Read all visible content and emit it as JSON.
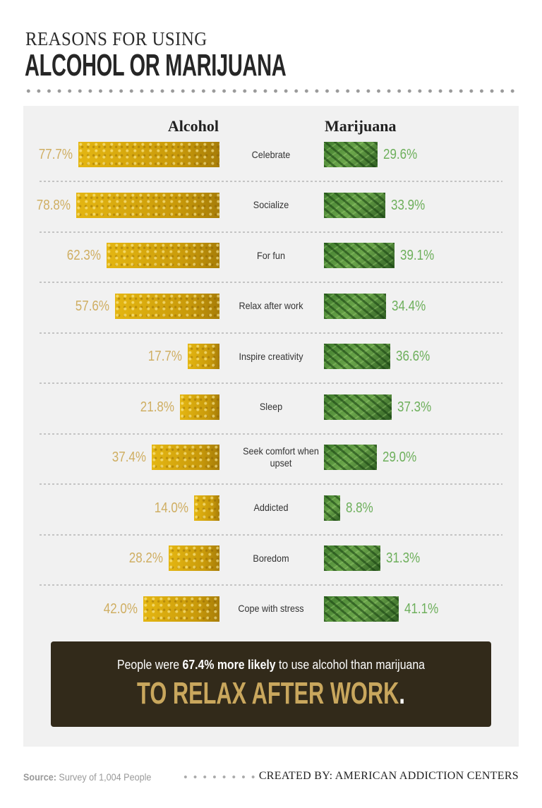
{
  "header": {
    "kicker": "REASONS FOR USING",
    "title": "ALCOHOL OR MARIJUANA"
  },
  "chart_data": {
    "type": "bar",
    "categories": [
      "Celebrate",
      "Socialize",
      "For fun",
      "Relax after work",
      "Inspire creativity",
      "Sleep",
      "Seek comfort when upset",
      "Addicted",
      "Boredom",
      "Cope with stress"
    ],
    "series": [
      {
        "name": "Alcohol",
        "values": [
          77.7,
          78.8,
          62.3,
          57.6,
          17.7,
          21.8,
          37.4,
          14.0,
          28.2,
          42.0
        ],
        "color": "#d4a80e"
      },
      {
        "name": "Marijuana",
        "values": [
          29.6,
          33.9,
          39.1,
          34.4,
          36.6,
          37.3,
          29.0,
          8.8,
          31.3,
          41.1
        ],
        "color": "#4e8a37"
      }
    ],
    "labels_alcohol": [
      "77.7%",
      "78.8%",
      "62.3%",
      "57.6%",
      "17.7%",
      "21.8%",
      "37.4%",
      "14.0%",
      "28.2%",
      "42.0%"
    ],
    "labels_marijuana": [
      "29.6%",
      "33.9%",
      "39.1%",
      "34.4%",
      "36.6%",
      "37.3%",
      "29.0%",
      "8.8%",
      "31.3%",
      "41.1%"
    ],
    "unit": "%"
  },
  "callout": {
    "pre": "People were ",
    "bold": "67.4% more likely",
    "post": " to use alcohol than marijuana",
    "headline": "TO RELAX AFTER WORK",
    "period": "."
  },
  "footer": {
    "source_label": "Source:",
    "source_text": " Survey of 1,004 People",
    "credit": "CREATED BY: AMERICAN ADDICTION CENTERS"
  }
}
